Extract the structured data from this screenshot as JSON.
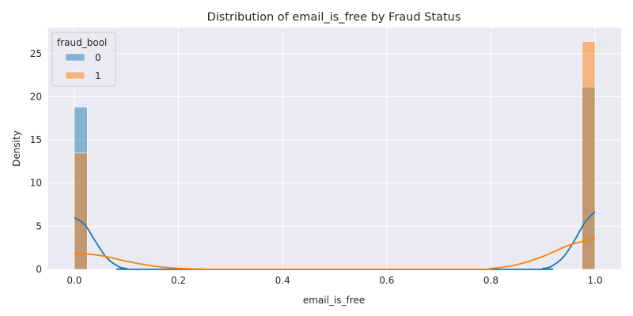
{
  "chart_data": {
    "type": "bar",
    "title": "Distribution of email_is_free by Fraud Status",
    "xlabel": "email_is_free",
    "ylabel": "Density",
    "xlim": [
      -0.05,
      1.05
    ],
    "ylim": [
      0,
      28
    ],
    "xticks": [
      0.0,
      0.2,
      0.4,
      0.6,
      0.8,
      1.0
    ],
    "xtick_labels": [
      "0.0",
      "0.2",
      "0.4",
      "0.6",
      "0.8",
      "1.0"
    ],
    "yticks": [
      0,
      5,
      10,
      15,
      20,
      25
    ],
    "ytick_labels": [
      "0",
      "5",
      "10",
      "15",
      "20",
      "25"
    ],
    "grid": true,
    "legend": {
      "title": "fraud_bool",
      "position": "top-left"
    },
    "bin_width": 0.025,
    "series": [
      {
        "name": "0",
        "color": "#1f77b4",
        "bars": [
          {
            "x0": 0.0,
            "x1": 0.025,
            "density": 18.8
          },
          {
            "x0": 0.975,
            "x1": 1.0,
            "density": 21.1
          }
        ],
        "kde": [
          [
            0.0,
            6.0
          ],
          [
            0.02,
            5.2
          ],
          [
            0.04,
            3.3
          ],
          [
            0.06,
            1.5
          ],
          [
            0.08,
            0.5
          ],
          [
            0.1,
            0.1
          ],
          [
            0.15,
            0.0
          ],
          [
            0.85,
            0.0
          ],
          [
            0.9,
            0.1
          ],
          [
            0.92,
            0.5
          ],
          [
            0.94,
            1.5
          ],
          [
            0.96,
            3.3
          ],
          [
            0.98,
            5.4
          ],
          [
            1.0,
            6.7
          ]
        ]
      },
      {
        "name": "1",
        "color": "#ff7f0e",
        "bars": [
          {
            "x0": 0.0,
            "x1": 0.025,
            "density": 13.5
          },
          {
            "x0": 0.975,
            "x1": 1.0,
            "density": 26.4
          }
        ],
        "kde": [
          [
            0.0,
            1.9
          ],
          [
            0.05,
            1.6
          ],
          [
            0.1,
            0.95
          ],
          [
            0.15,
            0.4
          ],
          [
            0.2,
            0.12
          ],
          [
            0.25,
            0.03
          ],
          [
            0.3,
            0.0
          ],
          [
            0.75,
            0.0
          ],
          [
            0.8,
            0.1
          ],
          [
            0.85,
            0.55
          ],
          [
            0.9,
            1.5
          ],
          [
            0.95,
            2.8
          ],
          [
            1.0,
            3.6
          ]
        ]
      }
    ]
  }
}
